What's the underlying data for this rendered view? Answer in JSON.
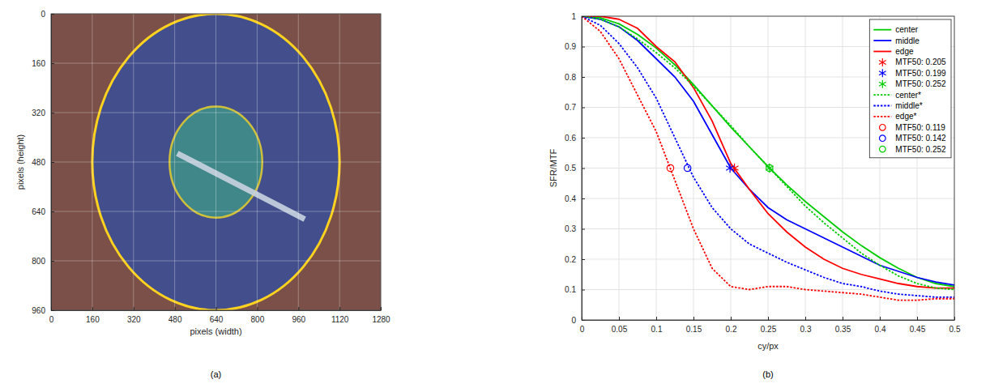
{
  "chart_data": [
    {
      "type": "image",
      "xlabel": "pixels (width)",
      "ylabel": "pixels (height)",
      "caption": "(a)",
      "xlim": [
        0,
        1280
      ],
      "ylim": [
        960,
        0
      ],
      "xticks": [
        0,
        160,
        320,
        480,
        640,
        800,
        960,
        1120,
        1280
      ],
      "yticks": [
        0,
        160,
        320,
        480,
        640,
        800,
        960
      ],
      "grid": true,
      "color": "#7a5048",
      "circles": [
        {
          "cx": 640,
          "cy": 480,
          "r": 480,
          "color": "#3b4f96"
        },
        {
          "cx": 640,
          "cy": 480,
          "r": 180,
          "color": "#3f8f88"
        }
      ],
      "segment": {
        "x": [
          490,
          985
        ],
        "y": [
          452,
          665
        ],
        "color": "#c9d3e0"
      }
    },
    {
      "type": "line",
      "xlabel": "cy/px",
      "ylabel": "SFR/MTF",
      "caption": "(b)",
      "xlim": [
        0,
        0.5
      ],
      "ylim": [
        0,
        1
      ],
      "xticks": [
        0,
        0.05,
        0.1,
        0.15,
        0.2,
        0.25,
        0.3,
        0.35,
        0.4,
        0.45,
        0.5
      ],
      "yticks": [
        0,
        0.1,
        0.2,
        0.3,
        0.4,
        0.5,
        0.6,
        0.7,
        0.8,
        0.9,
        1
      ],
      "grid": true,
      "legend": "upper right",
      "x": [
        0,
        0.025,
        0.05,
        0.075,
        0.1,
        0.125,
        0.15,
        0.175,
        0.2,
        0.225,
        0.25,
        0.275,
        0.3,
        0.325,
        0.35,
        0.375,
        0.4,
        0.425,
        0.45,
        0.475,
        0.5
      ],
      "series": [
        {
          "name": "center",
          "type": "line",
          "line_style": "solid",
          "color": "#00cc00",
          "values": [
            1,
            0.995,
            0.975,
            0.94,
            0.895,
            0.84,
            0.775,
            0.705,
            0.635,
            0.57,
            0.505,
            0.445,
            0.39,
            0.34,
            0.29,
            0.245,
            0.205,
            0.17,
            0.14,
            0.12,
            0.11
          ]
        },
        {
          "name": "middle",
          "type": "line",
          "line_style": "solid",
          "color": "#0000ff",
          "values": [
            1,
            0.99,
            0.965,
            0.92,
            0.86,
            0.8,
            0.72,
            0.61,
            0.5,
            0.43,
            0.37,
            0.33,
            0.3,
            0.27,
            0.24,
            0.21,
            0.18,
            0.16,
            0.14,
            0.125,
            0.115
          ]
        },
        {
          "name": "edge",
          "type": "line",
          "line_style": "solid",
          "color": "#ff0000",
          "values": [
            1,
            1,
            0.99,
            0.96,
            0.9,
            0.85,
            0.765,
            0.655,
            0.515,
            0.43,
            0.35,
            0.29,
            0.24,
            0.2,
            0.17,
            0.15,
            0.135,
            0.12,
            0.11,
            0.105,
            0.105
          ]
        },
        {
          "name": "MTF50: 0.205",
          "type": "scatter",
          "marker": "asterisk",
          "color": "#ff0000",
          "x": [
            0.205
          ],
          "values": [
            0.5
          ]
        },
        {
          "name": "MTF50: 0.199",
          "type": "scatter",
          "marker": "asterisk",
          "color": "#0000ff",
          "x": [
            0.199
          ],
          "values": [
            0.5
          ]
        },
        {
          "name": "MTF50: 0.252",
          "type": "scatter",
          "marker": "asterisk",
          "color": "#00cc00",
          "x": [
            0.252
          ],
          "values": [
            0.5
          ]
        },
        {
          "name": "center*",
          "type": "line",
          "line_style": "dotted",
          "color": "#00cc00",
          "values": [
            1,
            0.99,
            0.965,
            0.925,
            0.88,
            0.83,
            0.77,
            0.705,
            0.64,
            0.57,
            0.505,
            0.44,
            0.375,
            0.32,
            0.27,
            0.22,
            0.18,
            0.145,
            0.12,
            0.105,
            0.1
          ]
        },
        {
          "name": "middle*",
          "type": "line",
          "line_style": "dotted",
          "color": "#0000ff",
          "values": [
            1,
            0.97,
            0.91,
            0.83,
            0.73,
            0.6,
            0.47,
            0.37,
            0.3,
            0.25,
            0.22,
            0.19,
            0.165,
            0.14,
            0.12,
            0.11,
            0.095,
            0.085,
            0.08,
            0.075,
            0.075
          ]
        },
        {
          "name": "edge*",
          "type": "line",
          "line_style": "dotted",
          "color": "#ff0000",
          "values": [
            1,
            0.95,
            0.86,
            0.74,
            0.62,
            0.46,
            0.3,
            0.17,
            0.11,
            0.1,
            0.11,
            0.11,
            0.1,
            0.095,
            0.09,
            0.085,
            0.075,
            0.065,
            0.065,
            0.07,
            0.07
          ]
        },
        {
          "name": "MTF50: 0.119",
          "type": "scatter",
          "marker": "circle",
          "color": "#ff0000",
          "x": [
            0.119
          ],
          "values": [
            0.5
          ]
        },
        {
          "name": "MTF50: 0.142",
          "type": "scatter",
          "marker": "circle",
          "color": "#0000ff",
          "x": [
            0.142
          ],
          "values": [
            0.5
          ]
        },
        {
          "name": "MTF50: 0.252",
          "type": "scatter",
          "marker": "circle",
          "color": "#00cc00",
          "x": [
            0.252
          ],
          "values": [
            0.5
          ]
        }
      ]
    }
  ]
}
